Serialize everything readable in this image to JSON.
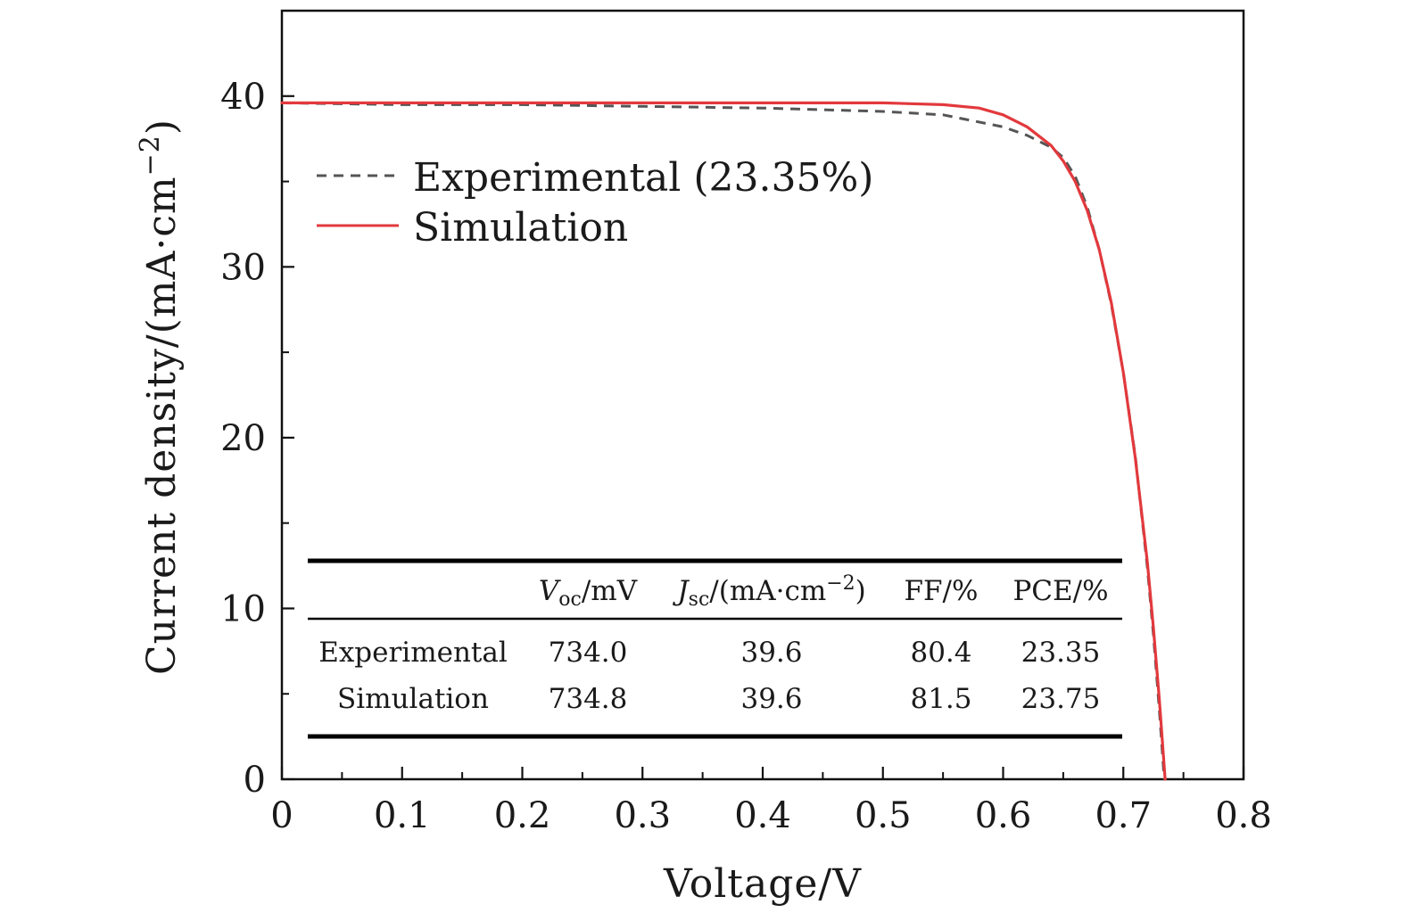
{
  "chart_data": {
    "type": "line",
    "title": "",
    "xlabel": "Voltage/V",
    "ylabel": "Current density/(mA·cm",
    "ylabel_sup": "−2",
    "ylabel_close": ")",
    "xlim": [
      0,
      0.8
    ],
    "ylim": [
      0,
      45
    ],
    "x_ticks": [
      0,
      0.1,
      0.2,
      0.3,
      0.4,
      0.5,
      0.6,
      0.7,
      0.8
    ],
    "x_tick_labels": [
      "0",
      "0.1",
      "0.2",
      "0.3",
      "0.4",
      "0.5",
      "0.6",
      "0.7",
      "0.8"
    ],
    "y_ticks": [
      0,
      10,
      20,
      30,
      40
    ],
    "y_tick_labels": [
      "0",
      "10",
      "20",
      "30",
      "40"
    ],
    "grid": false,
    "legend_position": "top-left",
    "series": [
      {
        "name": "Experimental (23.35%)",
        "style": "dashed",
        "color": "#555555",
        "x": [
          0,
          0.1,
          0.2,
          0.3,
          0.4,
          0.45,
          0.5,
          0.55,
          0.6,
          0.62,
          0.64,
          0.65,
          0.66,
          0.67,
          0.68,
          0.69,
          0.7,
          0.71,
          0.72,
          0.725,
          0.73,
          0.734
        ],
        "y": [
          39.6,
          39.5,
          39.5,
          39.4,
          39.3,
          39.2,
          39.1,
          38.9,
          38.2,
          37.7,
          37.0,
          36.4,
          35.3,
          33.5,
          31.0,
          27.8,
          23.8,
          18.9,
          12.4,
          8.5,
          4.0,
          0
        ]
      },
      {
        "name": "Simulation",
        "style": "solid",
        "color": "#e2393d",
        "x": [
          0,
          0.1,
          0.2,
          0.3,
          0.4,
          0.5,
          0.55,
          0.58,
          0.6,
          0.62,
          0.64,
          0.65,
          0.66,
          0.67,
          0.68,
          0.69,
          0.7,
          0.71,
          0.72,
          0.725,
          0.73,
          0.7348
        ],
        "y": [
          39.6,
          39.6,
          39.6,
          39.6,
          39.6,
          39.6,
          39.5,
          39.3,
          38.9,
          38.2,
          37.1,
          36.2,
          35.0,
          33.3,
          31.0,
          27.9,
          23.8,
          18.8,
          12.7,
          8.9,
          4.6,
          0
        ]
      }
    ],
    "table": {
      "headers": [
        {
          "main": "V",
          "sub": "oc",
          "rest": "/mV"
        },
        {
          "main": "J",
          "sub": "sc",
          "rest": "/(mA·cm",
          "sup": "−2",
          "close": ")"
        },
        {
          "main": "FF/%"
        },
        {
          "main": "PCE/%"
        }
      ],
      "rows": [
        {
          "label": "Experimental",
          "values": [
            "734.0",
            "39.6",
            "80.4",
            "23.35"
          ]
        },
        {
          "label": "Simulation",
          "values": [
            "734.8",
            "39.6",
            "81.5",
            "23.75"
          ]
        }
      ]
    }
  }
}
